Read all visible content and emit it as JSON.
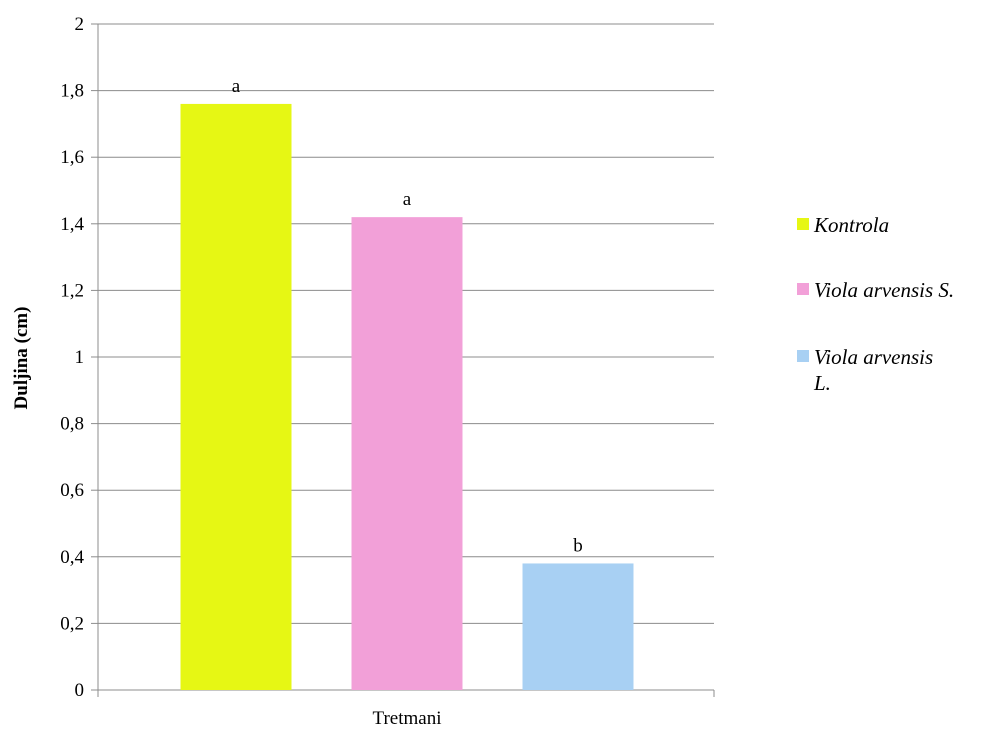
{
  "chart_data": {
    "type": "bar",
    "title": "",
    "xlabel": "Tretmani",
    "ylabel": "Duljina  (cm)",
    "ylim": [
      0,
      2
    ],
    "yticks": [
      "0",
      "0,2",
      "0,4",
      "0,6",
      "0,8",
      "1",
      "1,2",
      "1,4",
      "1,6",
      "1,8",
      "2"
    ],
    "grid": true,
    "legend_position": "right",
    "series": [
      {
        "name": "Kontrola",
        "value": 1.76,
        "label": "a",
        "color": "#e6f714"
      },
      {
        "name": "Viola arvensis S.",
        "value": 1.42,
        "label": "a",
        "color": "#f2a0d8"
      },
      {
        "name": "Viola arvensis L.",
        "value": 0.38,
        "label": "b",
        "color": "#a8d0f3"
      }
    ]
  }
}
